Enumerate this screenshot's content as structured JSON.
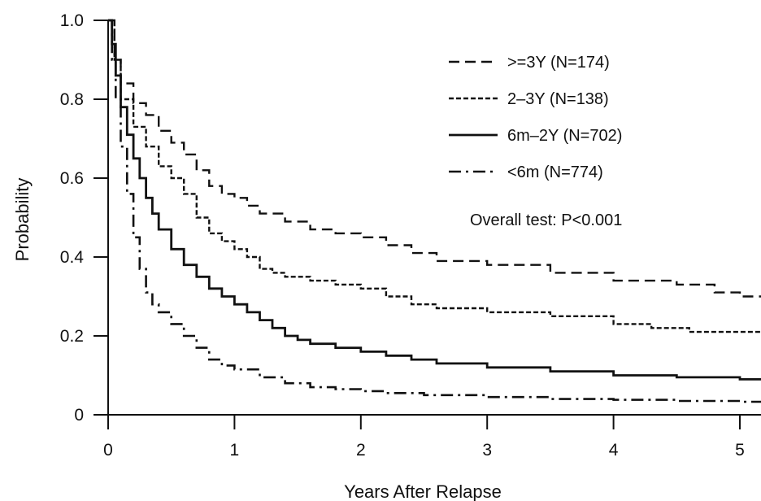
{
  "chart_data": {
    "type": "line",
    "step": true,
    "xlabel": "Years After Relapse",
    "ylabel": "Probability",
    "xlim": [
      0,
      5.2
    ],
    "ylim": [
      0,
      1.0
    ],
    "xticks": [
      0,
      1,
      2,
      3,
      4,
      5
    ],
    "xtick_labels": [
      "0",
      "1",
      "2",
      "3",
      "4",
      "5"
    ],
    "yticks": [
      0,
      0.2,
      0.4,
      0.6,
      0.8,
      1.0
    ],
    "ytick_labels": [
      "0",
      "0.2",
      "0.4",
      "0.6",
      "0.8",
      "1.0"
    ],
    "grid": false,
    "legend_position": "top-right",
    "annotation": "Overall test: P<0.001",
    "series": [
      {
        "name": ">=3Y (N=174)",
        "style": "dashed",
        "x": [
          0,
          0.05,
          0.1,
          0.2,
          0.3,
          0.4,
          0.5,
          0.6,
          0.7,
          0.8,
          0.9,
          1.0,
          1.1,
          1.2,
          1.4,
          1.6,
          1.8,
          2.0,
          2.2,
          2.4,
          2.6,
          3.0,
          3.5,
          4.0,
          4.5,
          4.8,
          5.0,
          5.2
        ],
        "y": [
          1.0,
          0.9,
          0.84,
          0.79,
          0.76,
          0.72,
          0.69,
          0.66,
          0.62,
          0.58,
          0.56,
          0.55,
          0.53,
          0.51,
          0.49,
          0.47,
          0.46,
          0.45,
          0.43,
          0.41,
          0.39,
          0.38,
          0.36,
          0.34,
          0.33,
          0.31,
          0.3,
          0.3
        ]
      },
      {
        "name": "2–3Y (N=138)",
        "style": "dotted",
        "x": [
          0,
          0.05,
          0.1,
          0.2,
          0.3,
          0.4,
          0.5,
          0.6,
          0.7,
          0.8,
          0.9,
          1.0,
          1.1,
          1.2,
          1.3,
          1.4,
          1.6,
          1.8,
          2.0,
          2.2,
          2.4,
          2.6,
          3.0,
          3.5,
          4.0,
          4.3,
          4.6,
          5.0,
          5.2
        ],
        "y": [
          1.0,
          0.9,
          0.8,
          0.73,
          0.68,
          0.63,
          0.6,
          0.56,
          0.5,
          0.46,
          0.44,
          0.42,
          0.4,
          0.37,
          0.36,
          0.35,
          0.34,
          0.33,
          0.32,
          0.3,
          0.28,
          0.27,
          0.26,
          0.25,
          0.23,
          0.22,
          0.21,
          0.21,
          0.21
        ]
      },
      {
        "name": "6m–2Y (N=702)",
        "style": "solid",
        "x": [
          0,
          0.03,
          0.06,
          0.1,
          0.15,
          0.2,
          0.25,
          0.3,
          0.35,
          0.4,
          0.5,
          0.6,
          0.7,
          0.8,
          0.9,
          1.0,
          1.1,
          1.2,
          1.3,
          1.4,
          1.5,
          1.6,
          1.8,
          2.0,
          2.2,
          2.4,
          2.6,
          3.0,
          3.5,
          4.0,
          4.5,
          5.0,
          5.2
        ],
        "y": [
          1.0,
          0.94,
          0.86,
          0.78,
          0.71,
          0.65,
          0.6,
          0.55,
          0.51,
          0.47,
          0.42,
          0.38,
          0.35,
          0.32,
          0.3,
          0.28,
          0.26,
          0.24,
          0.22,
          0.2,
          0.19,
          0.18,
          0.17,
          0.16,
          0.15,
          0.14,
          0.13,
          0.12,
          0.11,
          0.1,
          0.095,
          0.09,
          0.09
        ]
      },
      {
        "name": "<6m (N=774)",
        "style": "dashdot",
        "x": [
          0,
          0.03,
          0.06,
          0.1,
          0.15,
          0.2,
          0.25,
          0.3,
          0.35,
          0.4,
          0.5,
          0.6,
          0.7,
          0.8,
          0.9,
          1.0,
          1.2,
          1.4,
          1.6,
          1.8,
          2.0,
          2.2,
          2.5,
          3.0,
          3.5,
          4.0,
          4.5,
          5.0,
          5.2
        ],
        "y": [
          1.0,
          0.9,
          0.8,
          0.68,
          0.56,
          0.45,
          0.37,
          0.31,
          0.28,
          0.26,
          0.23,
          0.2,
          0.17,
          0.14,
          0.125,
          0.115,
          0.095,
          0.08,
          0.07,
          0.065,
          0.06,
          0.055,
          0.05,
          0.045,
          0.04,
          0.038,
          0.035,
          0.033,
          0.033
        ]
      }
    ]
  }
}
